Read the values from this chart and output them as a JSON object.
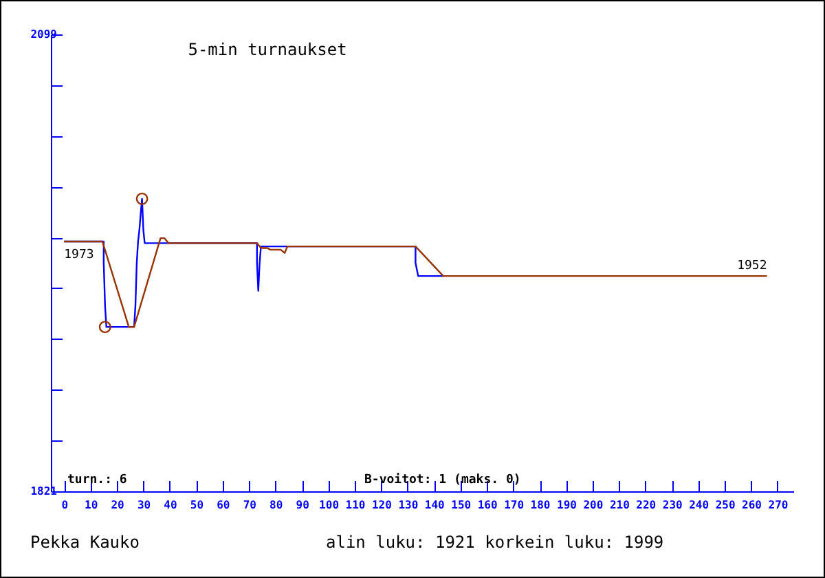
{
  "chart_data": {
    "type": "line",
    "title": "5-min turnaukset",
    "xlim": [
      -5,
      276
    ],
    "xticks": [
      0,
      10,
      20,
      30,
      40,
      50,
      60,
      70,
      80,
      90,
      100,
      110,
      120,
      130,
      140,
      150,
      160,
      170,
      180,
      190,
      200,
      210,
      220,
      230,
      240,
      250,
      260,
      270
    ],
    "ylim": [
      1821,
      2099
    ],
    "yticks": [
      1821,
      {
        "value": 1852,
        "label": null
      },
      {
        "value": 1883,
        "label": null
      },
      {
        "value": 1914,
        "label": null
      },
      {
        "value": 1945,
        "label": null
      },
      {
        "value": 1975,
        "label": null
      },
      {
        "value": 2006,
        "label": null
      },
      {
        "value": 2037,
        "label": null
      },
      {
        "value": 2068,
        "label": null
      },
      2099
    ],
    "grid": false,
    "series": [
      {
        "color": "#0000ff",
        "x": [
          0,
          15,
          15,
          15.5,
          16,
          26.5,
          27,
          27.5,
          28,
          28.5,
          29,
          29.5,
          30,
          30.5,
          39.5,
          73,
          73,
          73.5,
          74,
          74.5,
          84.5,
          133,
          133,
          134,
          143.5
        ],
        "values": [
          1973,
          1973,
          1960,
          1934,
          1921,
          1921,
          1934,
          1960,
          1973,
          1980,
          1990,
          1999,
          1980,
          1972,
          1972,
          1972,
          1960,
          1943,
          1960,
          1970,
          1970,
          1970,
          1960,
          1952,
          1952
        ]
      },
      {
        "color": "#993300",
        "x": [
          0,
          14.5,
          24.5,
          26.5,
          36.5,
          38,
          39.5,
          73,
          74.5,
          77,
          78,
          82,
          83.5,
          84.5,
          133,
          143.5,
          266
        ],
        "values": [
          1973,
          1973,
          1921,
          1921,
          1975,
          1975,
          1972,
          1972,
          1969,
          1969,
          1968,
          1968,
          1966,
          1970,
          1970,
          1952,
          1952
        ]
      },
      {
        "type": "scatter",
        "marker": "circle",
        "color": "#993300",
        "x": [
          15.5,
          29.5
        ],
        "values": [
          1921,
          1999
        ]
      }
    ],
    "annotations": [
      {
        "text": "1973",
        "x": 0,
        "y": 1973
      },
      {
        "text": "1952",
        "x": 266,
        "y": 1952
      },
      "turn.: 6",
      "B-voitot: 1 (maks. 0)",
      "Pekka Kauko",
      "alin luku: 1921  korkein luku: 1999"
    ]
  }
}
